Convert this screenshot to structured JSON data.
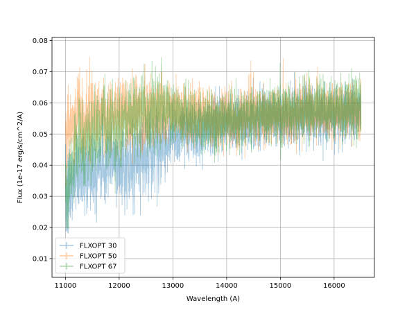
{
  "chart_data": {
    "type": "line",
    "xlabel": "Wavelength (A)",
    "ylabel": "Flux (1e-17 erg/s/cm^2/A)",
    "xlim": [
      10750,
      16750
    ],
    "ylim": [
      0.004,
      0.081
    ],
    "xticks": [
      11000,
      12000,
      13000,
      14000,
      15000,
      16000
    ],
    "yticks": [
      0.01,
      0.02,
      0.03,
      0.04,
      0.05,
      0.06,
      0.07,
      0.08
    ],
    "xtick_labels": [
      "11000",
      "12000",
      "13000",
      "14000",
      "15000",
      "16000"
    ],
    "ytick_labels": [
      "0.01",
      "0.02",
      "0.03",
      "0.04",
      "0.05",
      "0.06",
      "0.07",
      "0.08"
    ],
    "grid": true,
    "legend_position": "lower-left",
    "x_range_data": [
      11000,
      16500
    ],
    "series": [
      {
        "name": "FLXOPT 30",
        "color": "#1f77b4",
        "opacity": 0.4,
        "x": [
          11000,
          11250,
          11500,
          11750,
          12000,
          12250,
          12500,
          12750,
          13000,
          13250,
          13500,
          13750,
          14000,
          14500,
          15000,
          15500,
          16000,
          16500
        ],
        "y": [
          0.028,
          0.04,
          0.038,
          0.041,
          0.04,
          0.041,
          0.044,
          0.047,
          0.049,
          0.051,
          0.051,
          0.052,
          0.053,
          0.054,
          0.055,
          0.055,
          0.056,
          0.056
        ]
      },
      {
        "name": "FLXOPT 50",
        "color": "#ff7f0e",
        "opacity": 0.4,
        "x": [
          11000,
          11250,
          11500,
          11750,
          12000,
          12250,
          12500,
          12750,
          13000,
          13250,
          13500,
          13750,
          14000,
          14500,
          15000,
          15500,
          16000,
          16500
        ],
        "y": [
          0.05,
          0.058,
          0.056,
          0.057,
          0.056,
          0.057,
          0.058,
          0.058,
          0.058,
          0.057,
          0.056,
          0.055,
          0.055,
          0.056,
          0.056,
          0.057,
          0.057,
          0.057
        ]
      },
      {
        "name": "FLXOPT 67",
        "color": "#2ca02c",
        "opacity": 0.4,
        "x": [
          11000,
          11250,
          11500,
          11750,
          12000,
          12250,
          12500,
          12750,
          13000,
          13250,
          13500,
          13750,
          14000,
          14500,
          15000,
          15500,
          16000,
          16500
        ],
        "y": [
          0.03,
          0.048,
          0.05,
          0.052,
          0.052,
          0.055,
          0.056,
          0.057,
          0.057,
          0.056,
          0.054,
          0.054,
          0.055,
          0.056,
          0.057,
          0.058,
          0.058,
          0.059
        ]
      }
    ]
  }
}
